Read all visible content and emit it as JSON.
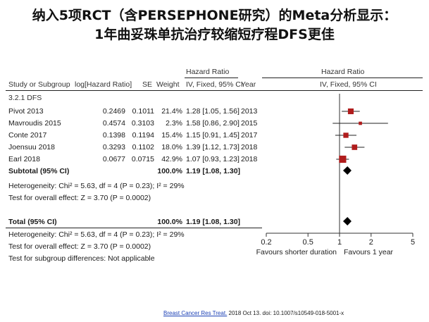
{
  "title": {
    "line1": "纳入5项RCT（含PERSEPHONE研究）的Meta分析显示：",
    "line2": "1年曲妥珠单抗治疗较缩短疗程DFS更佳"
  },
  "table": {
    "header_group": "Hazard Ratio",
    "header_group_right": "Hazard Ratio",
    "col_study": "Study or Subgroup",
    "col_loghr": "log[Hazard Ratio]",
    "col_se": "SE",
    "col_weight": "Weight",
    "col_ci": "IV, Fixed, 95% CI",
    "col_year": "Year",
    "col_ci_right": "IV, Fixed, 95% CI",
    "subgroup_label": "3.2.1 DFS",
    "rows": [
      {
        "study": "Pivot 2013",
        "loghr": "0.2469",
        "se": "0.1011",
        "weight": "21.4%",
        "ci": "1.28 [1.05, 1.56]",
        "year": "2013"
      },
      {
        "study": "Mavroudis 2015",
        "loghr": "0.4574",
        "se": "0.3103",
        "weight": "2.3%",
        "ci": "1.58 [0.86, 2.90]",
        "year": "2015"
      },
      {
        "study": "Conte 2017",
        "loghr": "0.1398",
        "se": "0.1194",
        "weight": "15.4%",
        "ci": "1.15 [0.91, 1.45]",
        "year": "2017"
      },
      {
        "study": "Joensuu 2018",
        "loghr": "0.3293",
        "se": "0.1102",
        "weight": "18.0%",
        "ci": "1.39 [1.12, 1.73]",
        "year": "2018"
      },
      {
        "study": "Earl 2018",
        "loghr": "0.0677",
        "se": "0.0715",
        "weight": "42.9%",
        "ci": "1.07 [0.93, 1.23]",
        "year": "2018"
      }
    ],
    "subtotal": {
      "label": "Subtotal (95% CI)",
      "weight": "100.0%",
      "ci": "1.19 [1.08, 1.30]"
    },
    "heterogeneity1": "Heterogeneity: Chi² = 5.63, df = 4 (P = 0.23); I² = 29%",
    "overall1": "Test for overall effect: Z = 3.70 (P = 0.0002)",
    "total": {
      "label": "Total (95% CI)",
      "weight": "100.0%",
      "ci": "1.19 [1.08, 1.30]"
    },
    "heterogeneity2": "Heterogeneity: Chi² = 5.63, df = 4 (P = 0.23); I² = 29%",
    "overall2": "Test for overall effect: Z = 3.70 (P = 0.0002)",
    "subgroup_diff": "Test for subgroup differences: Not applicable"
  },
  "chart_data": {
    "type": "forest",
    "scale": "log",
    "xlim": [
      0.2,
      5
    ],
    "x_ticks": [
      "0.2",
      "0.5",
      "1",
      "2",
      "5"
    ],
    "x_tick_values": [
      0.2,
      0.5,
      1,
      2,
      5
    ],
    "null_line": 1,
    "favours_left": "Favours shorter duration",
    "favours_right": "Favours 1 year",
    "studies": [
      {
        "name": "Pivot 2013",
        "hr": 1.28,
        "lo": 1.05,
        "hi": 1.56,
        "weight": 21.4
      },
      {
        "name": "Mavroudis 2015",
        "hr": 1.58,
        "lo": 0.86,
        "hi": 2.9,
        "weight": 2.3
      },
      {
        "name": "Conte 2017",
        "hr": 1.15,
        "lo": 0.91,
        "hi": 1.45,
        "weight": 15.4
      },
      {
        "name": "Joensuu 2018",
        "hr": 1.39,
        "lo": 1.12,
        "hi": 1.73,
        "weight": 18.0
      },
      {
        "name": "Earl 2018",
        "hr": 1.07,
        "lo": 0.93,
        "hi": 1.23,
        "weight": 42.9
      }
    ],
    "subtotal": {
      "hr": 1.19,
      "lo": 1.08,
      "hi": 1.3
    },
    "total": {
      "hr": 1.19,
      "lo": 1.08,
      "hi": 1.3
    },
    "colors": {
      "square": "#b01c1c",
      "line": "#222222",
      "diamond": "#000000"
    }
  },
  "citation": {
    "journal": "Breast Cancer Res Treat.",
    "rest": " 2018 Oct 13. doi: 10.1007/s10549-018-5001-x"
  }
}
